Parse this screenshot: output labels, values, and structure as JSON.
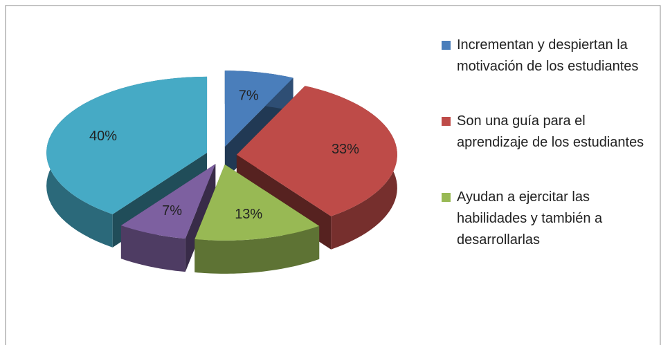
{
  "chart_data": {
    "type": "pie3d",
    "categories": [
      "Incrementan y despiertan la motivación de los estudiantes",
      "Son una guía para el aprendizaje de los estudiantes",
      "Ayudan a ejercitar las habilidades y también a desarrollarlas",
      null,
      null
    ],
    "values": [
      7,
      33,
      13,
      7,
      40
    ],
    "value_labels": [
      "7%",
      "33%",
      "13%",
      "7%",
      "40%"
    ],
    "colors": [
      "#4a7ebb",
      "#be4b48",
      "#98b954",
      "#7d60a0",
      "#46aac5"
    ],
    "legend": "right"
  }
}
